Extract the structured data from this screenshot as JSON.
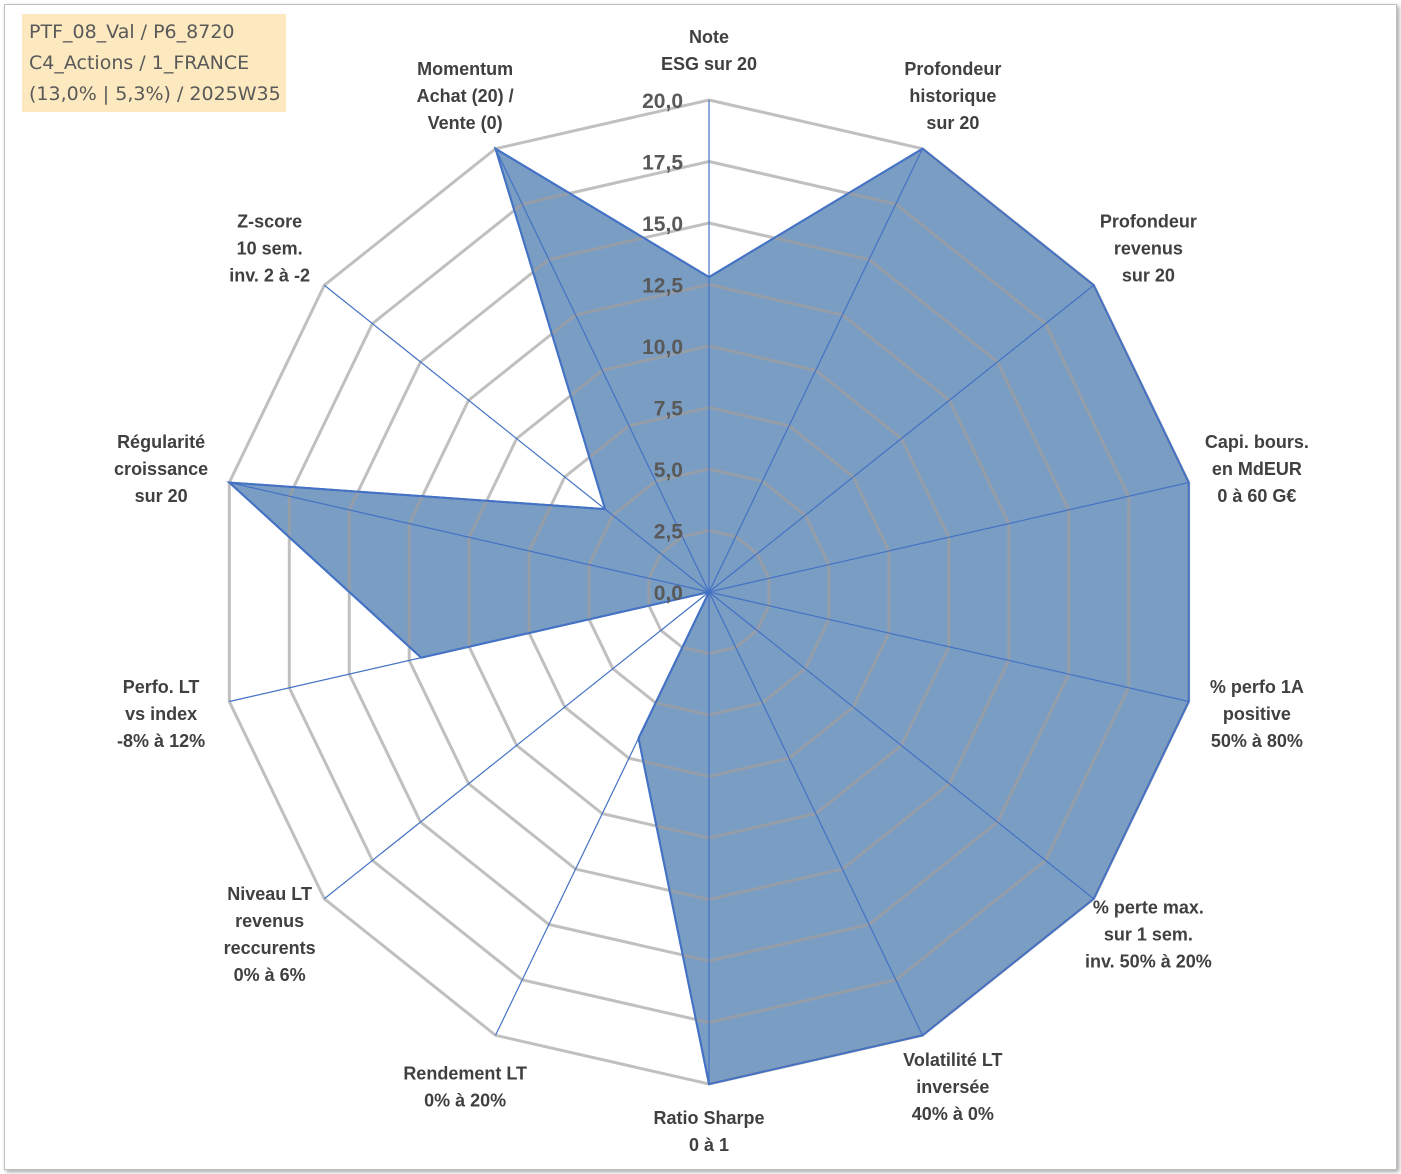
{
  "info_box": {
    "line1": "PTF_08_Val / P6_8720",
    "line2": "C4_Actions / 1_FRANCE",
    "line3": "(13,0% | 5,3%) / 2025W35"
  },
  "chart_data": {
    "type": "radar",
    "title": "",
    "rlim": [
      0,
      20
    ],
    "ticks": [
      "0,0",
      "2,5",
      "5,0",
      "7,5",
      "10,0",
      "12,5",
      "15,0",
      "17,5",
      "20,0"
    ],
    "categories": [
      [
        "Note",
        "ESG sur 20"
      ],
      [
        "Profondeur",
        "historique",
        "sur 20"
      ],
      [
        "Profondeur",
        "revenus",
        "sur 20"
      ],
      [
        "Capi. bours.",
        "en MdEUR",
        "0 à 60 G€"
      ],
      [
        "% perfo 1A",
        "positive",
        "50% à 80%"
      ],
      [
        "% perte max.",
        "sur 1 sem.",
        "inv. 50% à 20%"
      ],
      [
        "Volatilité LT",
        "inversée",
        "40% à 0%"
      ],
      [
        "Ratio Sharpe",
        "0 à 1"
      ],
      [
        "Rendement LT",
        "0% à 20%"
      ],
      [
        "Niveau LT",
        "revenus",
        "reccurents",
        "0% à 6%"
      ],
      [
        "Perfo. LT",
        "vs index",
        "-8% à 12%"
      ],
      [
        "Régularité",
        "croissance",
        "sur 20"
      ],
      [
        "Z-score",
        "10 sem.",
        "inv. 2 à -2"
      ],
      [
        "Momentum",
        "Achat (20) /",
        "Vente (0)"
      ]
    ],
    "series": [
      {
        "values": [
          12.8,
          20,
          20,
          20,
          20,
          20,
          20,
          20,
          6.6,
          0,
          12,
          20,
          5.4,
          20
        ],
        "fill": "#7a9dc4",
        "stroke": "#4472c4"
      }
    ],
    "grid": true,
    "grid_color": "#c0c0c0",
    "inner_grid_color": "#959ea8"
  }
}
